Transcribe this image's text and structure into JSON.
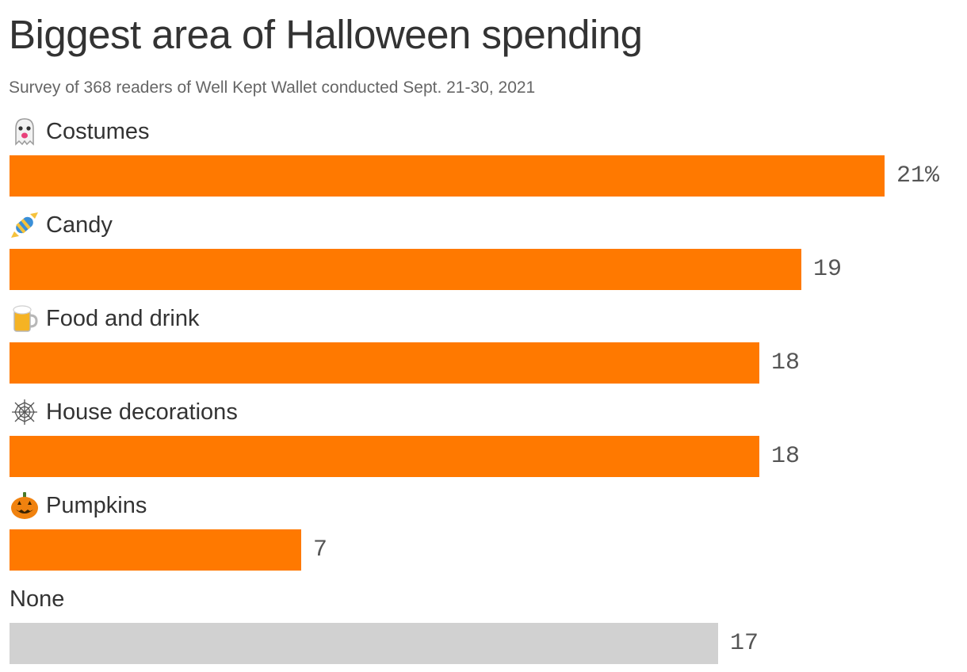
{
  "title": "Biggest area of Halloween spending",
  "subtitle": "Survey of 368 readers of Well Kept Wallet conducted Sept. 21-30, 2021",
  "colors": {
    "highlight": "#ff7900",
    "muted": "#d1d1d1"
  },
  "chart_data": {
    "type": "bar",
    "orientation": "horizontal",
    "title": "Biggest area of Halloween spending",
    "subtitle": "Survey of 368 readers of Well Kept Wallet conducted Sept. 21-30, 2021",
    "xlabel": "",
    "ylabel": "",
    "unit": "%",
    "xlim": [
      0,
      21
    ],
    "grid": false,
    "categories": [
      "Costumes",
      "Candy",
      "Food and drink",
      "House decorations",
      "Pumpkins",
      "None"
    ],
    "icons": [
      "ghost-icon",
      "candy-icon",
      "beer-mug-icon",
      "spider-web-icon",
      "jack-o-lantern-icon",
      ""
    ],
    "values": [
      21,
      19,
      18,
      18,
      7,
      17
    ],
    "value_labels": [
      "21%",
      "19",
      "18",
      "18",
      "7",
      "17"
    ],
    "bar_colors": [
      "#ff7900",
      "#ff7900",
      "#ff7900",
      "#ff7900",
      "#ff7900",
      "#d1d1d1"
    ]
  }
}
